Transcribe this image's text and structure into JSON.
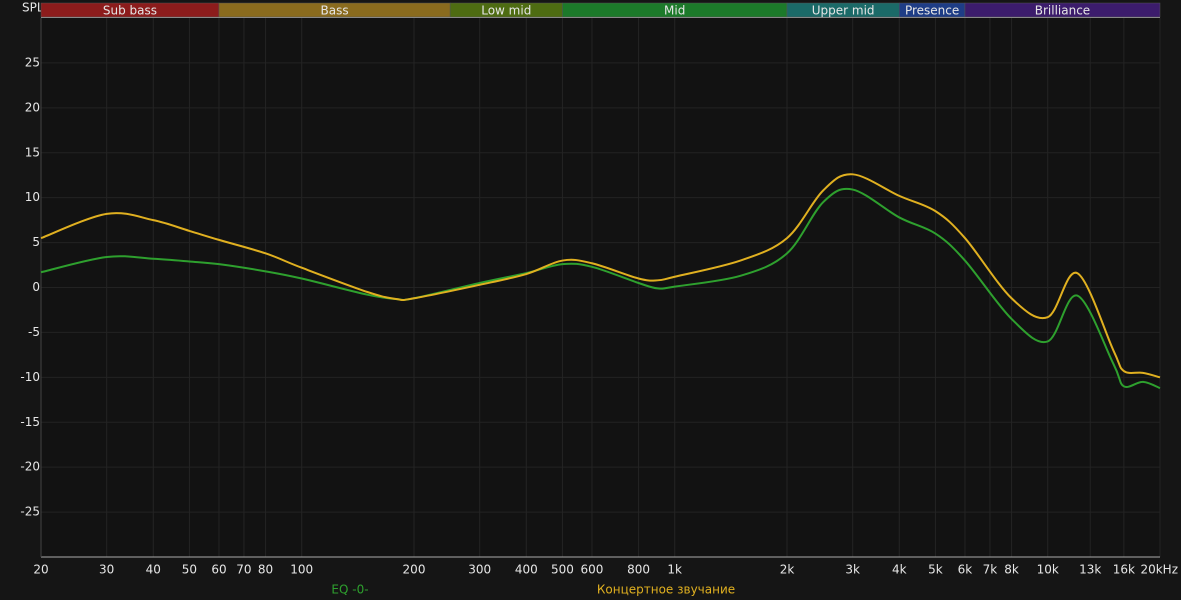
{
  "chart_data": {
    "type": "line",
    "y_label": "SPL",
    "xscale": "log",
    "xlim": [
      20,
      20000
    ],
    "ylim": [
      -30,
      30
    ],
    "xticks": [
      20,
      30,
      40,
      50,
      60,
      70,
      80,
      100,
      200,
      300,
      400,
      500,
      600,
      800,
      {
        "value": 1000,
        "label": "1k"
      },
      {
        "value": 2000,
        "label": "2k"
      },
      {
        "value": 3000,
        "label": "3k"
      },
      {
        "value": 4000,
        "label": "4k"
      },
      {
        "value": 5000,
        "label": "5k"
      },
      {
        "value": 6000,
        "label": "6k"
      },
      {
        "value": 7000,
        "label": "7k"
      },
      {
        "value": 8000,
        "label": "8k"
      },
      {
        "value": 10000,
        "label": "10k"
      },
      {
        "value": 13000,
        "label": "13k"
      },
      {
        "value": 16000,
        "label": "16k"
      },
      {
        "value": 20000,
        "label": "20kHz"
      }
    ],
    "yticks": [
      25,
      20,
      15,
      10,
      5,
      0,
      -5,
      -10,
      -15,
      -20,
      -25
    ],
    "grid": true,
    "bands": [
      {
        "name": "Sub bass",
        "from": 20,
        "to": 60,
        "color": "#8c1c1c"
      },
      {
        "name": "Bass",
        "from": 60,
        "to": 250,
        "color": "#8a6b1e"
      },
      {
        "name": "Low mid",
        "from": 250,
        "to": 500,
        "color": "#4e6c12"
      },
      {
        "name": "Mid",
        "from": 500,
        "to": 2000,
        "color": "#1c7a2a"
      },
      {
        "name": "Upper mid",
        "from": 2000,
        "to": 4000,
        "color": "#1b6a68"
      },
      {
        "name": "Presence",
        "from": 4000,
        "to": 6000,
        "color": "#1e3d86"
      },
      {
        "name": "Brilliance",
        "from": 6000,
        "to": 20000,
        "color": "#3c1c6c"
      }
    ],
    "x": [
      20,
      30,
      40,
      50,
      60,
      80,
      100,
      150,
      180,
      200,
      300,
      400,
      500,
      600,
      800,
      900,
      1000,
      1500,
      2000,
      2500,
      3000,
      4000,
      5000,
      6000,
      8000,
      10000,
      12000,
      15000,
      16000,
      18000,
      20000
    ],
    "series": [
      {
        "name": "EQ -0-",
        "color": "#2ea02e",
        "values": [
          1.7,
          3.4,
          3.2,
          2.9,
          2.6,
          1.8,
          1.0,
          -0.8,
          -1.3,
          -1.2,
          0.5,
          1.6,
          2.6,
          2.3,
          0.5,
          -0.1,
          0.1,
          1.3,
          3.8,
          9.5,
          10.9,
          7.8,
          6.0,
          3.0,
          -3.5,
          -6.0,
          -0.9,
          -8.5,
          -11.0,
          -10.5,
          -11.2
        ]
      },
      {
        "name": "Концертное звучание",
        "color": "#e0b020",
        "values": [
          5.5,
          8.2,
          7.5,
          6.3,
          5.3,
          3.8,
          2.2,
          -0.5,
          -1.3,
          -1.2,
          0.3,
          1.5,
          3.0,
          2.7,
          1.0,
          0.8,
          1.2,
          3.0,
          5.5,
          10.8,
          12.6,
          10.2,
          8.5,
          5.5,
          -1.2,
          -3.3,
          1.6,
          -7.0,
          -9.3,
          -9.5,
          -10.0
        ]
      }
    ]
  }
}
